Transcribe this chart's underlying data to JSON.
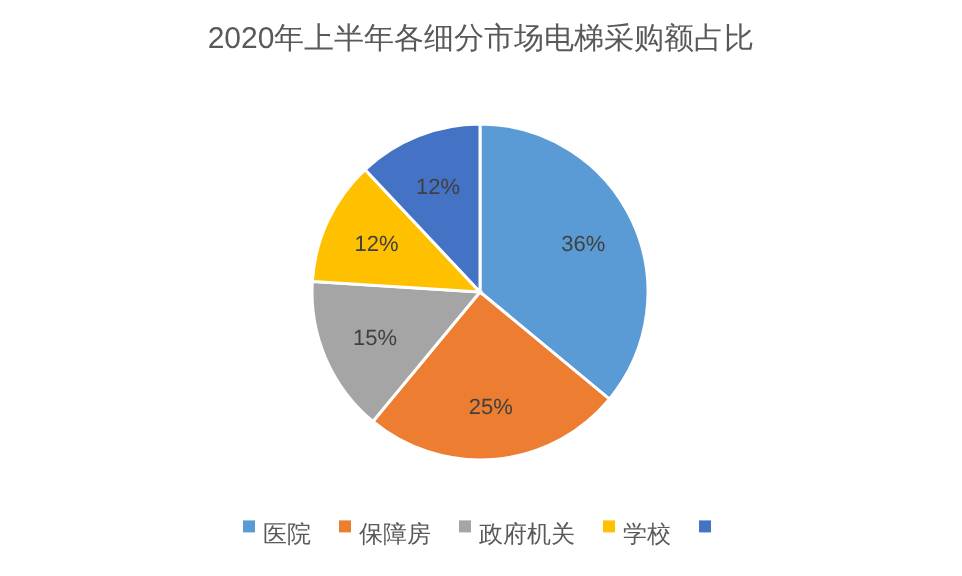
{
  "chart_data": {
    "type": "pie",
    "title": "2020年上半年各细分市场电梯采购额占比",
    "categories": [
      "医院",
      "保障房",
      "政府机关",
      "学校",
      null
    ],
    "values": [
      36,
      25,
      15,
      12,
      12
    ],
    "colors": [
      "#5b9bd5",
      "#ed7d31",
      "#a5a5a5",
      "#ffc000",
      "#4472c4"
    ],
    "value_labels": [
      "36%",
      "25%",
      "15%",
      "12%",
      "12%"
    ],
    "legend": "bottom"
  }
}
